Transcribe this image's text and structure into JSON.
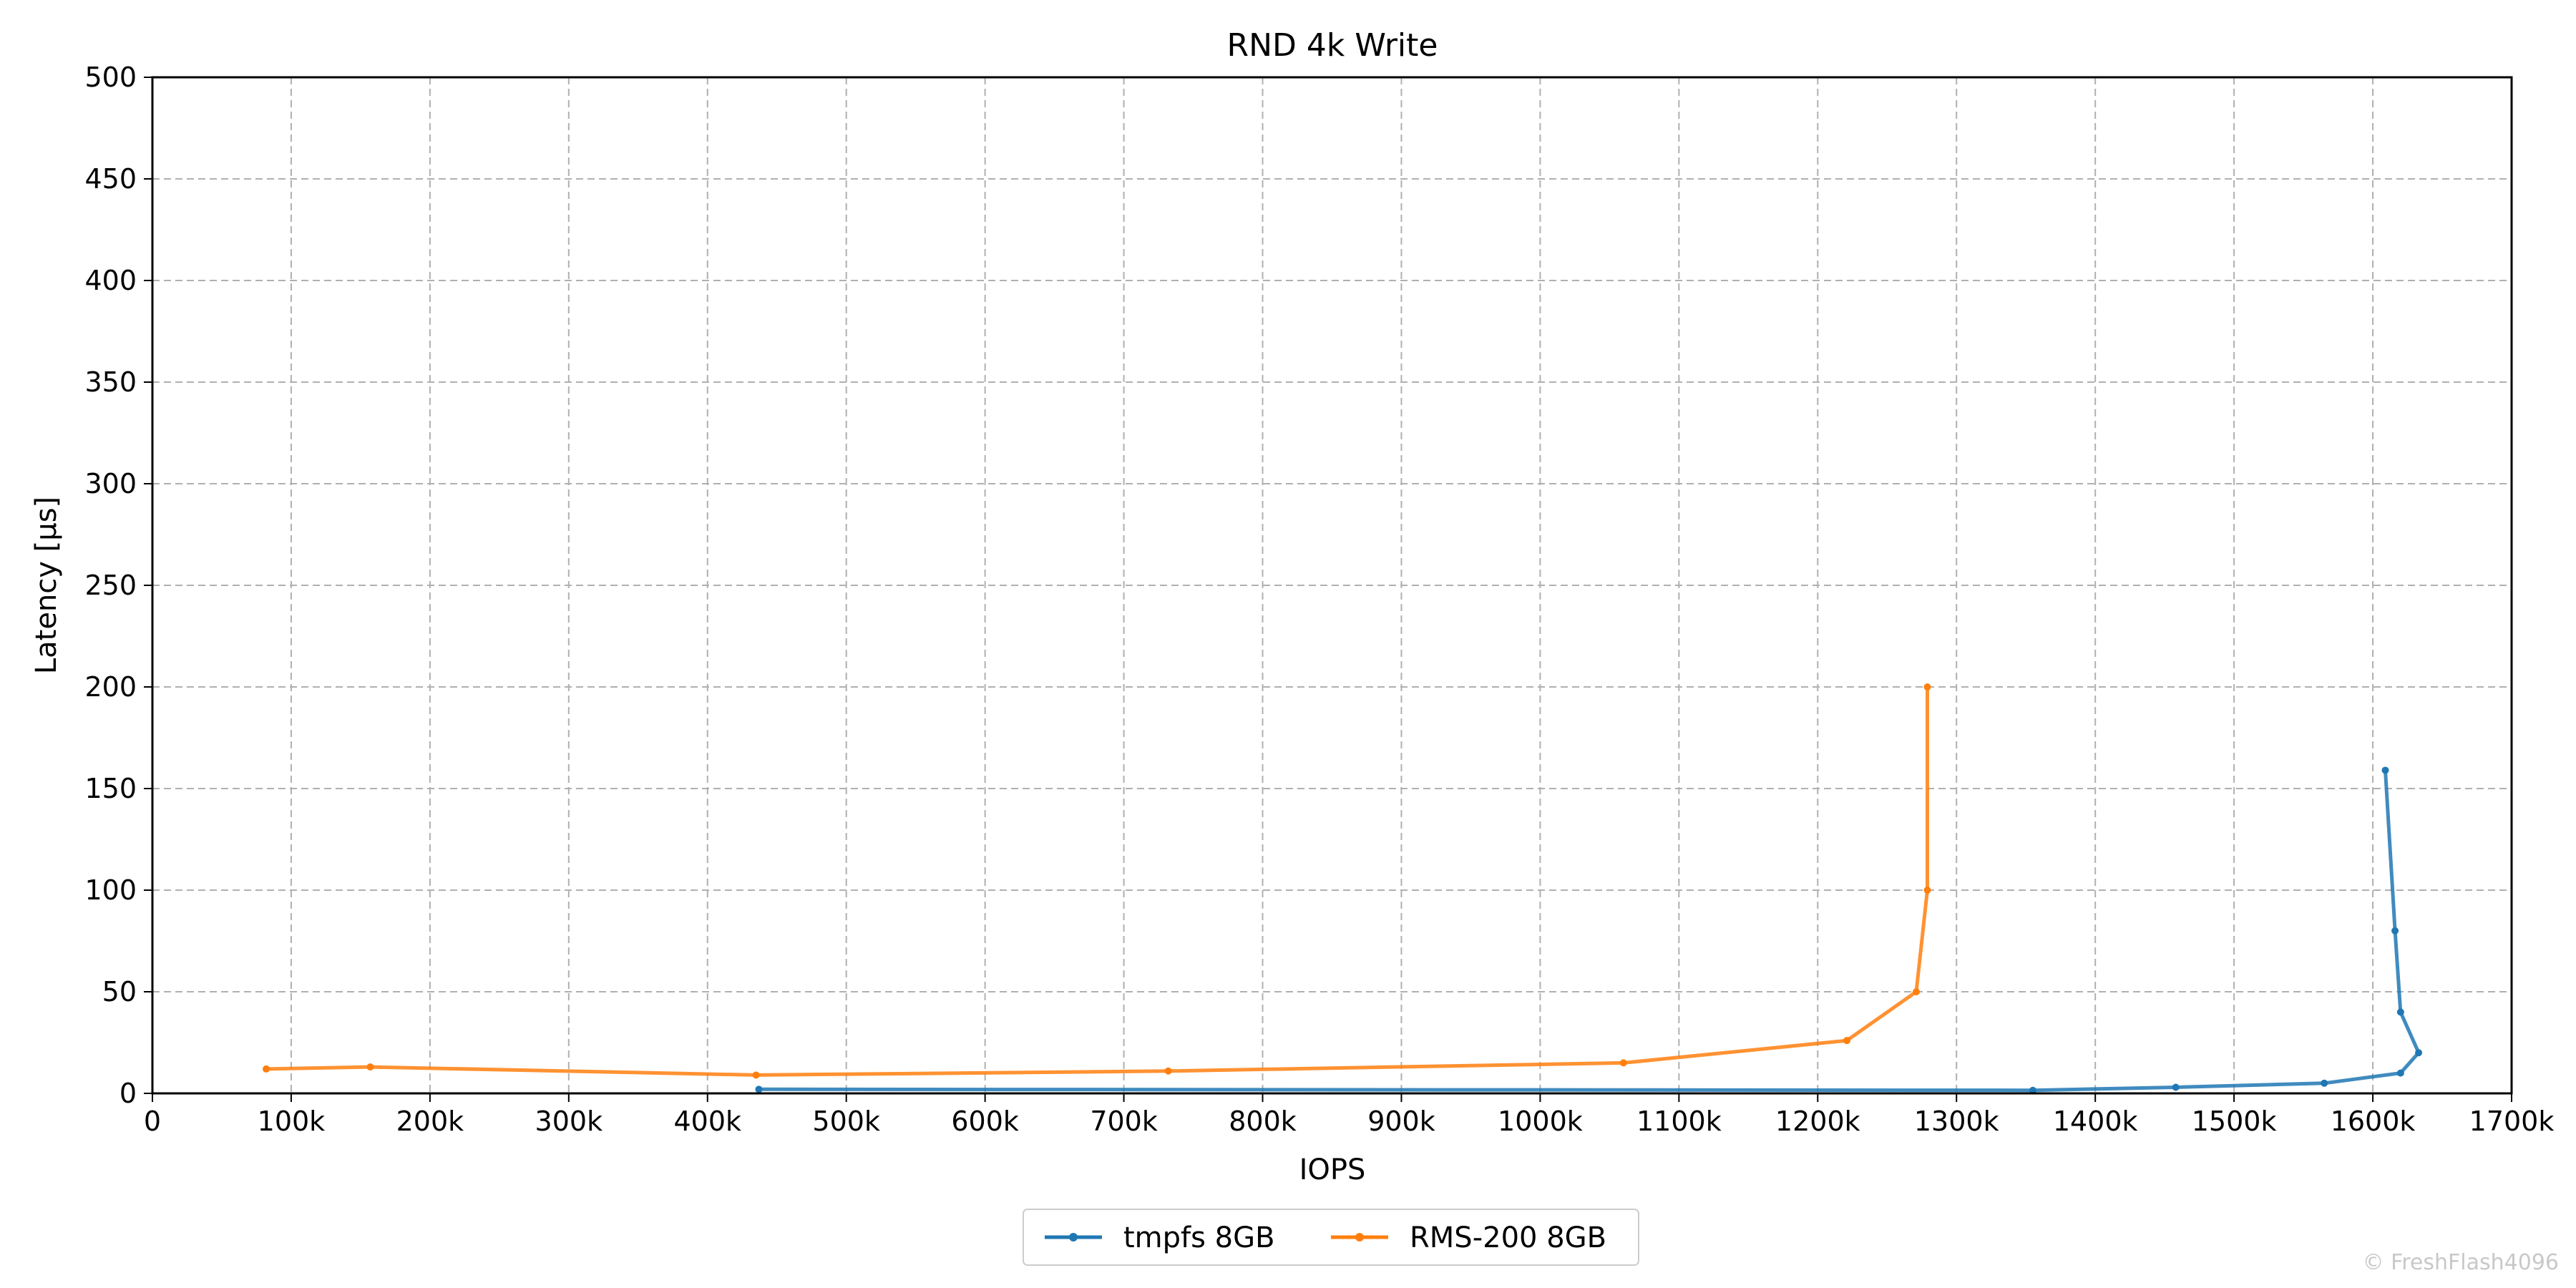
{
  "chart_data": {
    "type": "line",
    "title": "RND 4k Write",
    "xlabel": "IOPS",
    "ylabel": "Latency [µs]",
    "xlim": [
      0,
      1700000
    ],
    "ylim": [
      0,
      500
    ],
    "xticks": [
      0,
      100000,
      200000,
      300000,
      400000,
      500000,
      600000,
      700000,
      800000,
      900000,
      1000000,
      1100000,
      1200000,
      1300000,
      1400000,
      1500000,
      1600000,
      1700000
    ],
    "xtick_labels": [
      "0",
      "100k",
      "200k",
      "300k",
      "400k",
      "500k",
      "600k",
      "700k",
      "800k",
      "900k",
      "1000k",
      "1100k",
      "1200k",
      "1300k",
      "1400k",
      "1500k",
      "1600k",
      "1700k"
    ],
    "yticks": [
      0,
      50,
      100,
      150,
      200,
      250,
      300,
      350,
      400,
      450,
      500
    ],
    "ytick_labels": [
      "0",
      "50",
      "100",
      "150",
      "200",
      "250",
      "300",
      "350",
      "400",
      "450",
      "500"
    ],
    "grid": true,
    "legend_position": "bottom-center",
    "series": [
      {
        "name": "tmpfs 8GB",
        "color": "#1f77b4",
        "points": [
          [
            437000,
            2
          ],
          [
            1355000,
            1.5
          ],
          [
            1458000,
            3
          ],
          [
            1565000,
            5
          ],
          [
            1620000,
            10
          ],
          [
            1633000,
            20
          ],
          [
            1620000,
            40
          ],
          [
            1616000,
            80
          ],
          [
            1609000,
            159
          ]
        ]
      },
      {
        "name": "RMS-200 8GB",
        "color": "#ff7f0e",
        "points": [
          [
            82000,
            12
          ],
          [
            157000,
            13
          ],
          [
            435000,
            9
          ],
          [
            732000,
            11
          ],
          [
            1060000,
            15
          ],
          [
            1221000,
            26
          ],
          [
            1271000,
            50
          ],
          [
            1279000,
            100
          ],
          [
            1279000,
            200
          ]
        ]
      }
    ]
  },
  "watermark": "© FreshFlash4096"
}
